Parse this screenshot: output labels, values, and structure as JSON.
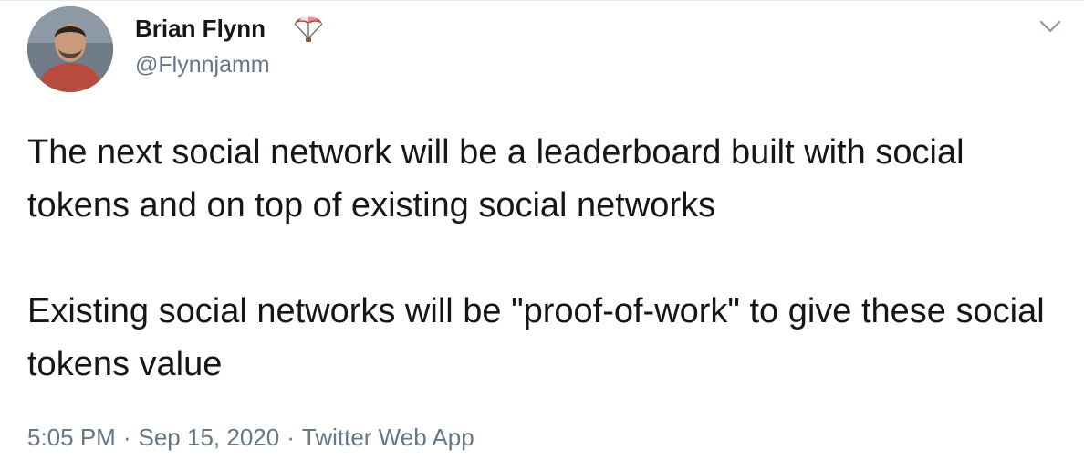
{
  "author": {
    "display_name": "Brian Flynn",
    "name_emoji": "parachute-emoji",
    "handle": "@Flynnjamm",
    "avatar": "profile-photo"
  },
  "tweet": {
    "paragraphs": [
      "The next social network will be a leaderboard built with social tokens and on top of existing social networks",
      "Existing social networks will be \"proof-of-work\" to give these social tokens value"
    ]
  },
  "meta": {
    "time": "5:05 PM",
    "date": "Sep 15, 2020",
    "source": "Twitter Web App",
    "separator": "·"
  },
  "icons": {
    "menu": "chevron-down-icon"
  },
  "colors": {
    "text": "#14171a",
    "secondary": "#657786",
    "parachute_red": "#d23b3b"
  }
}
